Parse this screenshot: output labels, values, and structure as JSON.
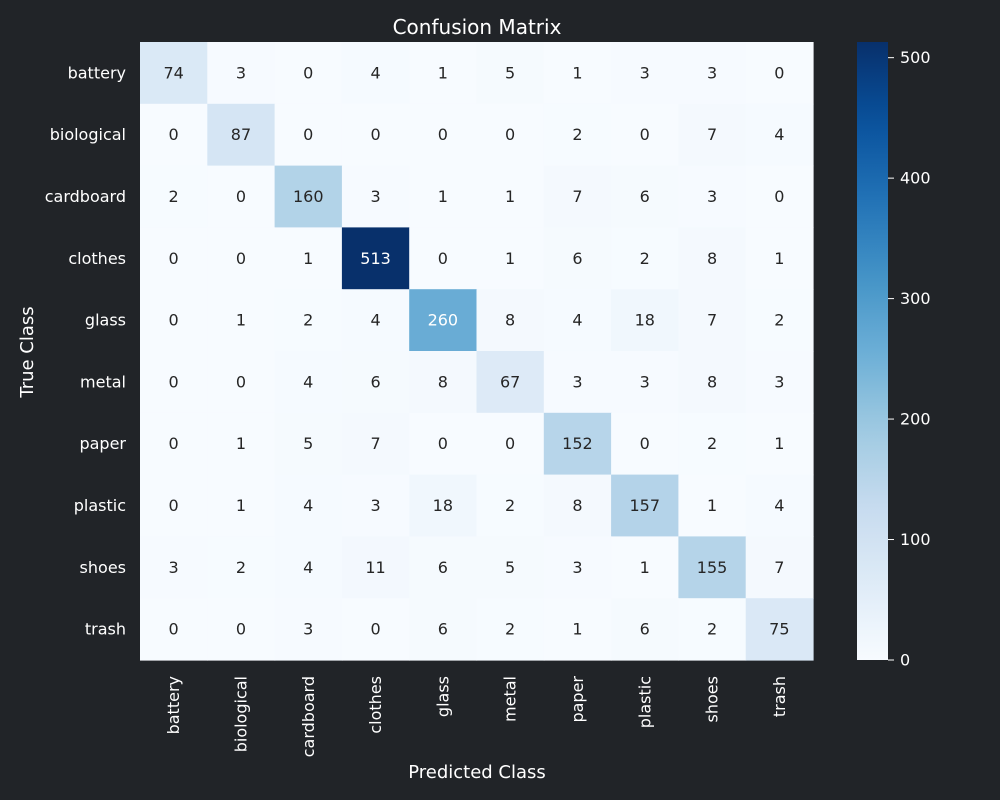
{
  "chart_data": {
    "type": "heatmap",
    "title": "Confusion Matrix",
    "xlabel": "Predicted Class",
    "ylabel": "True Class",
    "x_categories": [
      "battery",
      "biological",
      "cardboard",
      "clothes",
      "glass",
      "metal",
      "paper",
      "plastic",
      "shoes",
      "trash"
    ],
    "y_categories": [
      "battery",
      "biological",
      "cardboard",
      "clothes",
      "glass",
      "metal",
      "paper",
      "plastic",
      "shoes",
      "trash"
    ],
    "values": [
      [
        74,
        3,
        0,
        4,
        1,
        5,
        1,
        3,
        3,
        0
      ],
      [
        0,
        87,
        0,
        0,
        0,
        0,
        2,
        0,
        7,
        4
      ],
      [
        2,
        0,
        160,
        3,
        1,
        1,
        7,
        6,
        3,
        0
      ],
      [
        0,
        0,
        1,
        513,
        0,
        1,
        6,
        2,
        8,
        1
      ],
      [
        0,
        1,
        2,
        4,
        260,
        8,
        4,
        18,
        7,
        2
      ],
      [
        0,
        0,
        4,
        6,
        8,
        67,
        3,
        3,
        8,
        3
      ],
      [
        0,
        1,
        5,
        7,
        0,
        0,
        152,
        0,
        2,
        1
      ],
      [
        0,
        1,
        4,
        3,
        18,
        2,
        8,
        157,
        1,
        4
      ],
      [
        3,
        2,
        4,
        11,
        6,
        5,
        3,
        1,
        155,
        7
      ],
      [
        0,
        0,
        3,
        0,
        6,
        2,
        1,
        6,
        2,
        75
      ]
    ],
    "colorbar": {
      "colormap": "Blues",
      "range": [
        0,
        513
      ],
      "ticks": [
        0,
        100,
        200,
        300,
        400,
        500
      ]
    },
    "grid": false
  },
  "colors": {
    "background": "#212428",
    "text": "#ffffff",
    "annotation_dark": "#262626",
    "annotation_light": "#ffffff"
  }
}
